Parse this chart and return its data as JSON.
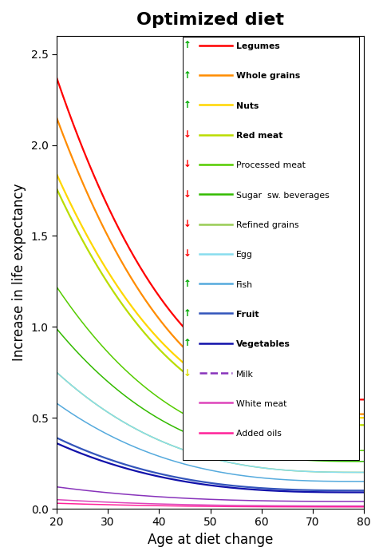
{
  "title": "Optimized diet",
  "xlabel": "Age at diet change",
  "ylabel": "Increase in life expectancy",
  "xlim": [
    20,
    80
  ],
  "ylim": [
    0,
    2.6
  ],
  "xticks": [
    20,
    30,
    40,
    50,
    60,
    70,
    80
  ],
  "yticks": [
    0.0,
    0.5,
    1.0,
    1.5,
    2.0,
    2.5
  ],
  "series": [
    {
      "label": "Legumes",
      "color": "#FF0000",
      "bold": true,
      "arrow": "up_green",
      "y20": 2.37,
      "y80": 0.6
    },
    {
      "label": "Whole grains",
      "color": "#FF8C00",
      "bold": true,
      "arrow": "up_green",
      "y20": 2.15,
      "y80": 0.52
    },
    {
      "label": "Nuts",
      "color": "#FFD700",
      "bold": true,
      "arrow": "up_green",
      "y20": 1.84,
      "y80": 0.5
    },
    {
      "label": "Red meat",
      "color": "#BBDD00",
      "bold": true,
      "arrow": "dn_red",
      "y20": 1.76,
      "y80": 0.46
    },
    {
      "label": "Processed meat",
      "color": "#55CC00",
      "bold": false,
      "arrow": "dn_red",
      "y20": 1.22,
      "y80": 0.32
    },
    {
      "label": "Sugar  sw. beverages",
      "color": "#33BB00",
      "bold": false,
      "arrow": "dn_red",
      "y20": 0.99,
      "y80": 0.26
    },
    {
      "label": "Refined grains",
      "color": "#99CC55",
      "bold": false,
      "arrow": "dn_red",
      "y20": 0.75,
      "y80": 0.2
    },
    {
      "label": "Egg",
      "color": "#88DDEE",
      "bold": false,
      "arrow": "dn_red",
      "y20": 0.75,
      "y80": 0.2
    },
    {
      "label": "Fish",
      "color": "#55AADD",
      "bold": false,
      "arrow": "up_green",
      "y20": 0.58,
      "y80": 0.15
    },
    {
      "label": "Fruit",
      "color": "#3355BB",
      "bold": true,
      "arrow": "up_green",
      "y20": 0.39,
      "y80": 0.1
    },
    {
      "label": "Vegetables",
      "color": "#1111AA",
      "bold": true,
      "arrow": "up_green",
      "y20": 0.36,
      "y80": 0.09
    },
    {
      "label": "Milk",
      "color": "#8833BB",
      "bold": false,
      "arrow": "dn_yellow",
      "y20": 0.12,
      "y80": 0.04
    },
    {
      "label": "White meat",
      "color": "#DD44BB",
      "bold": false,
      "arrow": "none",
      "y20": 0.05,
      "y80": 0.015
    },
    {
      "label": "Added oils",
      "color": "#FF2299",
      "bold": false,
      "arrow": "none",
      "y20": 0.03,
      "y80": 0.01
    }
  ],
  "curve_alpha": 2.8,
  "background_color": "#FFFFFF",
  "figsize": [
    4.8,
    7.0
  ],
  "dpi": 100
}
